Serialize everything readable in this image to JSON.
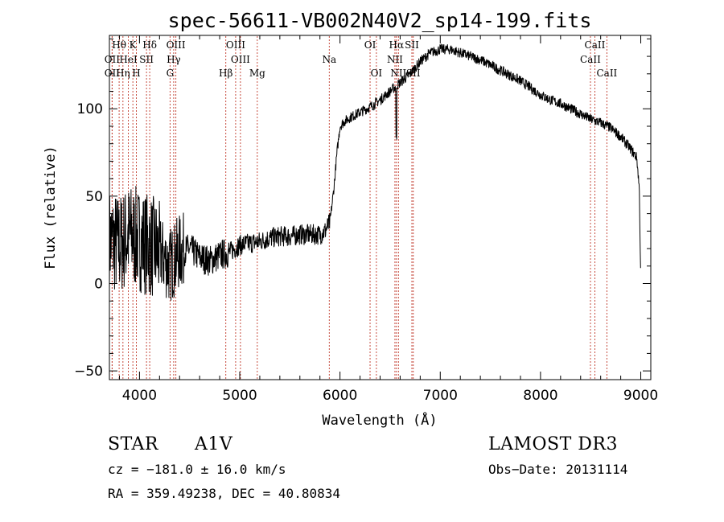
{
  "chart_data": {
    "type": "line",
    "title": "spec-56611-VB002N40V2_sp14-199.fits",
    "xlabel": "Wavelength (Å)",
    "ylabel": "Flux (relative)",
    "xlim": [
      3700,
      9100
    ],
    "ylim": [
      -55,
      142
    ],
    "xticks": [
      4000,
      5000,
      6000,
      7000,
      8000,
      9000
    ],
    "yticks": [
      -50,
      0,
      50,
      100
    ],
    "spectrum_nodes": [
      [
        3700,
        25
      ],
      [
        3800,
        22
      ],
      [
        3900,
        28
      ],
      [
        4000,
        25
      ],
      [
        4100,
        22
      ],
      [
        4200,
        18
      ],
      [
        4300,
        10
      ],
      [
        4400,
        18
      ],
      [
        4500,
        20
      ],
      [
        4600,
        15
      ],
      [
        4700,
        13
      ],
      [
        4800,
        16
      ],
      [
        4900,
        18
      ],
      [
        5000,
        22
      ],
      [
        5100,
        23
      ],
      [
        5200,
        24
      ],
      [
        5300,
        26
      ],
      [
        5400,
        27
      ],
      [
        5500,
        27
      ],
      [
        5600,
        28
      ],
      [
        5700,
        28
      ],
      [
        5800,
        28
      ],
      [
        5850,
        30
      ],
      [
        5900,
        35
      ],
      [
        5940,
        55
      ],
      [
        5970,
        75
      ],
      [
        6000,
        90
      ],
      [
        6050,
        93
      ],
      [
        6100,
        95
      ],
      [
        6200,
        98
      ],
      [
        6300,
        101
      ],
      [
        6400,
        105
      ],
      [
        6500,
        110
      ],
      [
        6600,
        115
      ],
      [
        6700,
        120
      ],
      [
        6800,
        127
      ],
      [
        6900,
        132
      ],
      [
        7000,
        134
      ],
      [
        7100,
        134
      ],
      [
        7200,
        132
      ],
      [
        7300,
        130
      ],
      [
        7400,
        128
      ],
      [
        7500,
        125
      ],
      [
        7600,
        122
      ],
      [
        7700,
        119
      ],
      [
        7800,
        116
      ],
      [
        7900,
        112
      ],
      [
        8000,
        108
      ],
      [
        8100,
        105
      ],
      [
        8200,
        103
      ],
      [
        8300,
        100
      ],
      [
        8400,
        97
      ],
      [
        8500,
        94
      ],
      [
        8600,
        92
      ],
      [
        8700,
        89
      ],
      [
        8800,
        84
      ],
      [
        8900,
        77
      ],
      [
        8960,
        72
      ],
      [
        8985,
        55
      ],
      [
        9000,
        2
      ]
    ],
    "spectral_lines": [
      {
        "label": "Hθ",
        "wavelength": 3797,
        "row": 1
      },
      {
        "label": "OII",
        "wavelength": 3727,
        "row": 2
      },
      {
        "label": "OII",
        "wavelength": 3727,
        "row": 3
      },
      {
        "label": "K",
        "wavelength": 3934,
        "row": 1
      },
      {
        "label": "Hη",
        "wavelength": 3835,
        "row": 3
      },
      {
        "label": "H",
        "wavelength": 3969,
        "row": 3
      },
      {
        "label": "HeI",
        "wavelength": 3889,
        "row": 2
      },
      {
        "label": "SII",
        "wavelength": 4070,
        "row": 2
      },
      {
        "label": "Hδ",
        "wavelength": 4102,
        "row": 1
      },
      {
        "label": "OIII",
        "wavelength": 4363,
        "row": 1
      },
      {
        "label": "Hγ",
        "wavelength": 4341,
        "row": 2
      },
      {
        "label": "G",
        "wavelength": 4305,
        "row": 3
      },
      {
        "label": "OIII",
        "wavelength": 4959,
        "row": 1
      },
      {
        "label": "OIII",
        "wavelength": 5007,
        "row": 2
      },
      {
        "label": "Hβ",
        "wavelength": 4861,
        "row": 3
      },
      {
        "label": "Mg",
        "wavelength": 5175,
        "row": 3
      },
      {
        "label": "Na",
        "wavelength": 5893,
        "row": 2
      },
      {
        "label": "OI",
        "wavelength": 6300,
        "row": 1
      },
      {
        "label": "OI",
        "wavelength": 6363,
        "row": 3
      },
      {
        "label": "Hα",
        "wavelength": 6563,
        "row": 1
      },
      {
        "label": "NII",
        "wavelength": 6548,
        "row": 2
      },
      {
        "label": "NII",
        "wavelength": 6583,
        "row": 3
      },
      {
        "label": "SII",
        "wavelength": 6717,
        "row": 1
      },
      {
        "label": "SII",
        "wavelength": 6731,
        "row": 3
      },
      {
        "label": "CaII",
        "wavelength": 8542,
        "row": 1
      },
      {
        "label": "CaII",
        "wavelength": 8498,
        "row": 2
      },
      {
        "label": "CaII",
        "wavelength": 8662,
        "row": 3
      }
    ],
    "line_color": "#c0392b"
  },
  "info": {
    "object_class": "STAR",
    "subclass": "A1V",
    "survey": "LAMOST DR3",
    "cz": "cz = −181.0 ± 16.0 km/s",
    "obs_date": "Obs−Date: 20131114",
    "coords": "RA = 359.49238, DEC =  40.80834"
  }
}
